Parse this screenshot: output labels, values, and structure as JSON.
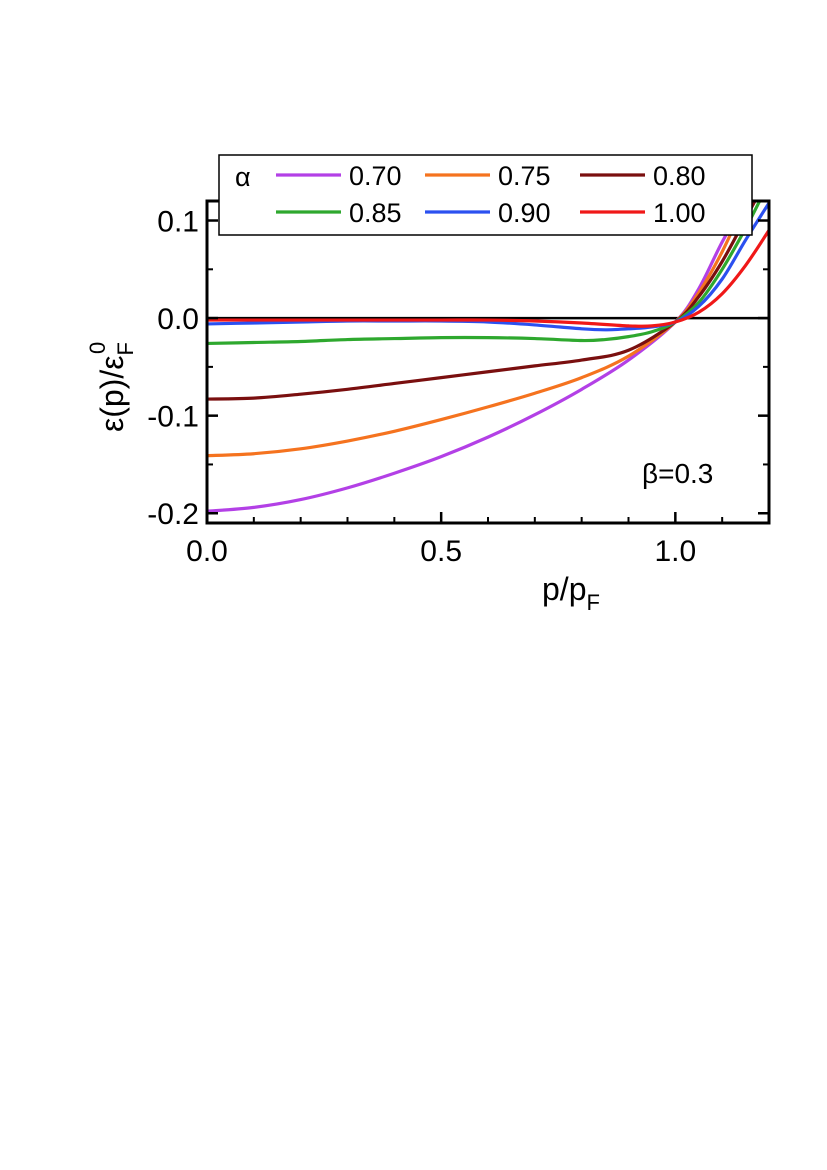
{
  "chart_data": {
    "type": "line",
    "xlabel": "p/p_F",
    "ylabel": "ε(p)/ε_F^0",
    "xlim": [
      0.0,
      1.2
    ],
    "ylim": [
      -0.21,
      0.12
    ],
    "xticks": [
      0.0,
      0.5,
      1.0
    ],
    "xtick_labels": [
      "0.0",
      "0.5",
      "1.0"
    ],
    "yticks": [
      -0.2,
      -0.1,
      0.0,
      0.1
    ],
    "ytick_labels": [
      "-0.2",
      "-0.1",
      "0.0",
      "0.1"
    ],
    "annotation": "β=0.3",
    "legend_title": "α",
    "legend_position": "top",
    "zero_line": true,
    "series": [
      {
        "name": "0.70",
        "color": "#b340e6",
        "x": [
          0,
          0.1,
          0.2,
          0.3,
          0.4,
          0.5,
          0.6,
          0.7,
          0.8,
          0.9,
          1.0,
          1.05,
          1.1,
          1.15
        ],
        "y": [
          -0.198,
          -0.194,
          -0.186,
          -0.174,
          -0.159,
          -0.142,
          -0.122,
          -0.099,
          -0.073,
          -0.043,
          -0.004,
          0.03,
          0.078,
          0.12
        ]
      },
      {
        "name": "0.75",
        "color": "#f5731f",
        "x": [
          0,
          0.1,
          0.2,
          0.3,
          0.4,
          0.5,
          0.6,
          0.7,
          0.8,
          0.9,
          1.0,
          1.05,
          1.1,
          1.15
        ],
        "y": [
          -0.141,
          -0.139,
          -0.134,
          -0.126,
          -0.116,
          -0.104,
          -0.091,
          -0.077,
          -0.061,
          -0.039,
          -0.004,
          0.026,
          0.068,
          0.12
        ]
      },
      {
        "name": "0.80",
        "color": "#7a0f0f",
        "x": [
          0,
          0.1,
          0.2,
          0.3,
          0.4,
          0.5,
          0.6,
          0.7,
          0.8,
          0.9,
          1.0,
          1.05,
          1.1,
          1.15,
          1.17
        ],
        "y": [
          -0.083,
          -0.082,
          -0.078,
          -0.073,
          -0.067,
          -0.061,
          -0.055,
          -0.049,
          -0.043,
          -0.033,
          -0.004,
          0.022,
          0.058,
          0.102,
          0.12
        ]
      },
      {
        "name": "0.85",
        "color": "#2ea82e",
        "x": [
          0,
          0.1,
          0.2,
          0.3,
          0.4,
          0.5,
          0.6,
          0.7,
          0.8,
          0.85,
          0.9,
          0.95,
          1.0,
          1.05,
          1.1,
          1.15,
          1.18
        ],
        "y": [
          -0.026,
          -0.025,
          -0.024,
          -0.022,
          -0.021,
          -0.02,
          -0.02,
          -0.021,
          -0.023,
          -0.022,
          -0.019,
          -0.014,
          -0.004,
          0.016,
          0.05,
          0.092,
          0.12
        ]
      },
      {
        "name": "0.90",
        "color": "#2b50f0",
        "x": [
          0,
          0.1,
          0.2,
          0.3,
          0.4,
          0.5,
          0.6,
          0.7,
          0.8,
          0.85,
          0.9,
          0.95,
          1.0,
          1.05,
          1.1,
          1.15,
          1.2
        ],
        "y": [
          -0.006,
          -0.005,
          -0.004,
          -0.003,
          -0.003,
          -0.003,
          -0.004,
          -0.007,
          -0.011,
          -0.012,
          -0.011,
          -0.009,
          -0.004,
          0.012,
          0.04,
          0.08,
          0.118
        ]
      },
      {
        "name": "1.00",
        "color": "#f01818",
        "x": [
          0,
          0.1,
          0.2,
          0.3,
          0.4,
          0.5,
          0.6,
          0.7,
          0.8,
          0.9,
          0.95,
          1.0,
          1.05,
          1.1,
          1.15,
          1.2
        ],
        "y": [
          -0.002,
          -0.002,
          -0.002,
          -0.002,
          -0.002,
          -0.002,
          -0.002,
          -0.003,
          -0.005,
          -0.008,
          -0.008,
          -0.004,
          0.006,
          0.025,
          0.054,
          0.09
        ]
      }
    ]
  }
}
